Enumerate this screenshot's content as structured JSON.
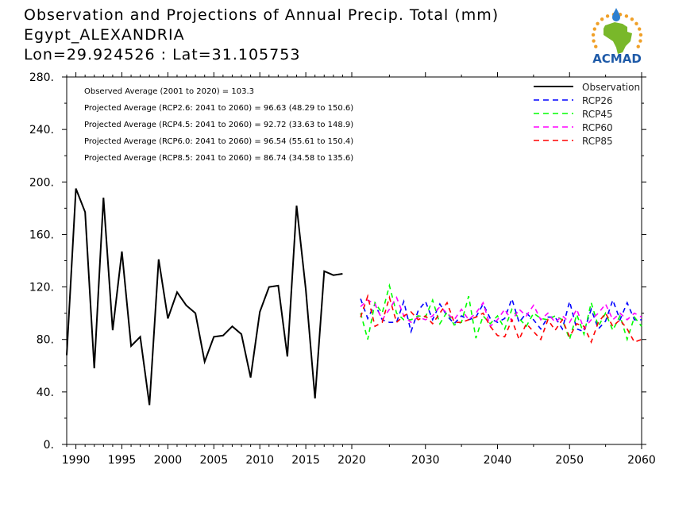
{
  "title_lines": [
    "Observation and Projections of Annual Precip. Total (mm)",
    "Egypt_ALEXANDRIA",
    "Lon=29.924526 : Lat=31.105753"
  ],
  "logo": {
    "text": "ACMAD",
    "colors": {
      "map": "#79b82a",
      "rays": "#f0a028",
      "text": "#1e5aa8",
      "drop": "#2d7fd0"
    }
  },
  "chart_data": {
    "type": "line",
    "title": "Observation and Projections of Annual Precip. Total (mm)",
    "ylim": [
      0,
      280
    ],
    "yticks": [
      0,
      40,
      80,
      120,
      160,
      200,
      240,
      280
    ],
    "ytick_labels": [
      "0.",
      "40.",
      "80.",
      "120.",
      "160.",
      "200.",
      "240.",
      "280."
    ],
    "segments": [
      {
        "xlim": [
          1989,
          2021
        ],
        "ticks": [
          1990,
          1995,
          2000,
          2005,
          2010,
          2015,
          2020
        ]
      },
      {
        "xlim": [
          2021,
          2060
        ],
        "ticks": [
          2030,
          2040,
          2050,
          2060
        ]
      }
    ],
    "annotations": [
      "Observed Average (2001 to 2020) = 103.3",
      "Projected Average (RCP2.6: 2041 to 2060) = 96.63 (48.29 to 150.6)",
      "Projected Average (RCP4.5: 2041 to 2060) = 92.72 (33.63 to 148.9)",
      "Projected Average (RCP6.0: 2041 to 2060) = 96.54 (55.61 to 150.4)",
      "Projected Average (RCP8.5: 2041 to 2060) = 86.74 (34.58 to 135.6)"
    ],
    "legend_position": "top-right",
    "series": [
      {
        "name": "Observation",
        "color": "#000000",
        "dash": false,
        "x": [
          1989,
          1990,
          1991,
          1992,
          1993,
          1994,
          1995,
          1996,
          1997,
          1998,
          1999,
          2000,
          2001,
          2002,
          2003,
          2004,
          2005,
          2006,
          2007,
          2008,
          2009,
          2010,
          2011,
          2012,
          2013,
          2014,
          2015,
          2016,
          2017,
          2018,
          2019
        ],
        "values": [
          68,
          195,
          177,
          58,
          188,
          87,
          147,
          75,
          82,
          30,
          141,
          96,
          116,
          106,
          100,
          63,
          82,
          83,
          90,
          84,
          51,
          101,
          120,
          121,
          67,
          182,
          118,
          35,
          132,
          129,
          130
        ]
      },
      {
        "name": "RCP26",
        "color": "#0000ff",
        "dash": true,
        "x": [
          2021,
          2022,
          2023,
          2024,
          2025,
          2026,
          2027,
          2028,
          2029,
          2030,
          2031,
          2032,
          2033,
          2034,
          2035,
          2036,
          2037,
          2038,
          2039,
          2040,
          2041,
          2042,
          2043,
          2044,
          2045,
          2046,
          2047,
          2048,
          2049,
          2050,
          2051,
          2052,
          2053,
          2054,
          2055,
          2056,
          2057,
          2058,
          2059,
          2060
        ],
        "values": [
          111,
          96,
          107,
          95,
          93,
          93,
          109,
          86,
          102,
          109,
          95,
          107,
          98,
          92,
          98,
          95,
          97,
          107,
          96,
          93,
          96,
          111,
          93,
          100,
          95,
          88,
          97,
          97,
          88,
          109,
          88,
          86,
          103,
          88,
          94,
          110,
          95,
          108,
          95,
          95
        ]
      },
      {
        "name": "RCP45",
        "color": "#00ff00",
        "dash": true,
        "x": [
          2021,
          2022,
          2023,
          2024,
          2025,
          2026,
          2027,
          2028,
          2029,
          2030,
          2031,
          2032,
          2033,
          2034,
          2035,
          2036,
          2037,
          2038,
          2039,
          2040,
          2041,
          2042,
          2043,
          2044,
          2045,
          2046,
          2047,
          2048,
          2049,
          2050,
          2051,
          2052,
          2053,
          2054,
          2055,
          2056,
          2057,
          2058,
          2059,
          2060
        ],
        "values": [
          100,
          80,
          108,
          100,
          121,
          100,
          95,
          95,
          98,
          97,
          110,
          92,
          101,
          91,
          93,
          113,
          81,
          98,
          92,
          98,
          88,
          103,
          96,
          90,
          100,
          96,
          95,
          98,
          95,
          80,
          99,
          84,
          108,
          90,
          100,
          87,
          98,
          80,
          97,
          90
        ]
      },
      {
        "name": "RCP60",
        "color": "#ff00ff",
        "dash": true,
        "x": [
          2021,
          2022,
          2023,
          2024,
          2025,
          2026,
          2027,
          2028,
          2029,
          2030,
          2031,
          2032,
          2033,
          2034,
          2035,
          2036,
          2037,
          2038,
          2039,
          2040,
          2041,
          2042,
          2043,
          2044,
          2045,
          2046,
          2047,
          2048,
          2049,
          2050,
          2051,
          2052,
          2053,
          2054,
          2055,
          2056,
          2057,
          2058,
          2059,
          2060
        ],
        "values": [
          105,
          110,
          107,
          95,
          103,
          112,
          98,
          93,
          97,
          95,
          98,
          105,
          100,
          95,
          103,
          95,
          100,
          108,
          90,
          95,
          103,
          94,
          103,
          98,
          106,
          95,
          100,
          93,
          98,
          93,
          103,
          88,
          95,
          100,
          107,
          95,
          100,
          95,
          100,
          97
        ]
      },
      {
        "name": "RCP85",
        "color": "#ff0000",
        "dash": true,
        "x": [
          2021,
          2022,
          2023,
          2024,
          2025,
          2026,
          2027,
          2028,
          2029,
          2030,
          2031,
          2032,
          2033,
          2034,
          2035,
          2036,
          2037,
          2038,
          2039,
          2040,
          2041,
          2042,
          2043,
          2044,
          2045,
          2046,
          2047,
          2048,
          2049,
          2050,
          2051,
          2052,
          2053,
          2054,
          2055,
          2056,
          2057,
          2058,
          2059,
          2060
        ],
        "values": [
          97,
          113,
          90,
          93,
          112,
          93,
          98,
          101,
          95,
          98,
          92,
          100,
          108,
          93,
          93,
          95,
          97,
          100,
          90,
          83,
          82,
          95,
          80,
          92,
          86,
          80,
          95,
          87,
          95,
          82,
          92,
          90,
          78,
          93,
          100,
          90,
          95,
          88,
          78,
          80
        ]
      }
    ]
  }
}
